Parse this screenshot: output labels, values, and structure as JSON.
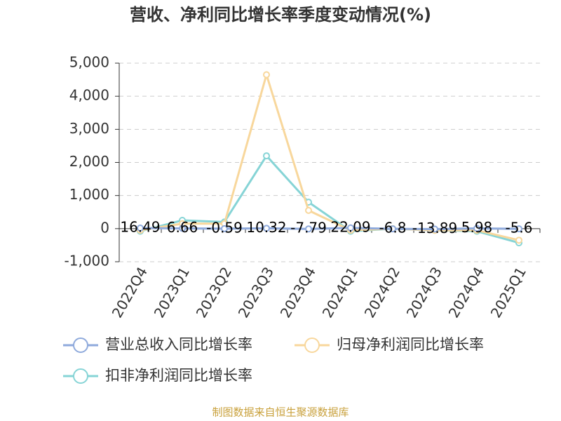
{
  "chart_data": {
    "type": "line",
    "title": "营收、净利同比增长率季度变动情况(%)",
    "categories": [
      "2022Q4",
      "2023Q1",
      "2023Q2",
      "2023Q3",
      "2023Q4",
      "2024Q1",
      "2024Q2",
      "2024Q3",
      "2024Q4",
      "2025Q1"
    ],
    "series": [
      {
        "name": "营业总收入同比增长率",
        "color": "#8faadc",
        "values": [
          16.49,
          6.66,
          -0.59,
          10.32,
          -7.79,
          22.09,
          -6.8,
          -13.89,
          5.98,
          -5.6
        ]
      },
      {
        "name": "归母净利润同比增长率",
        "color": "#f8d79c",
        "values": [
          -50,
          150,
          150,
          4650,
          550,
          -50,
          0,
          -50,
          -50,
          -350
        ]
      },
      {
        "name": "扣非净利润同比增长率",
        "color": "#86d4d6",
        "values": [
          -80,
          250,
          200,
          2200,
          800,
          -80,
          0,
          -50,
          -80,
          -430
        ]
      }
    ],
    "ylim": [
      -1000,
      5000
    ],
    "yticks": [
      {
        "value": -1000,
        "label": "-1,000"
      },
      0,
      {
        "value": 1000,
        "label": "1,000"
      },
      {
        "value": 2000,
        "label": "2,000"
      },
      {
        "value": 3000,
        "label": "3,000"
      },
      {
        "value": 4000,
        "label": "4,000"
      },
      {
        "value": 5000,
        "label": "5,000"
      }
    ],
    "grid": true,
    "source": "制图数据来自恒生聚源数据库"
  }
}
